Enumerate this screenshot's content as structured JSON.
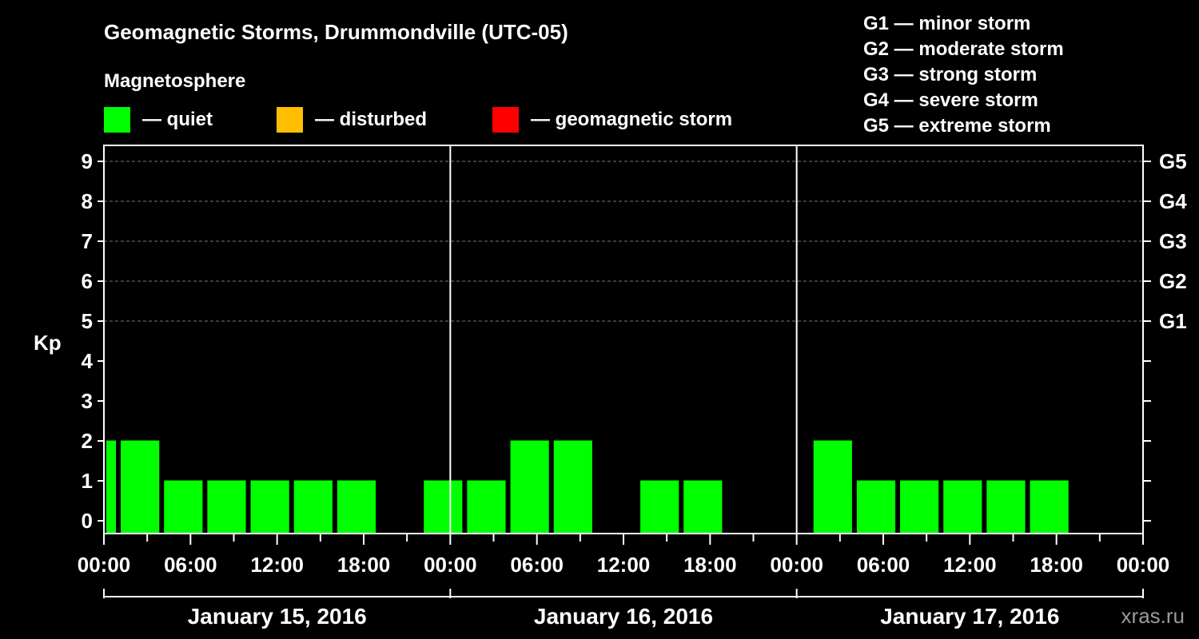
{
  "chart_data": {
    "type": "bar",
    "title": "Geomagnetic Storms, Drummondville (UTC-05)",
    "magnetosphere_label": "Magnetosphere",
    "status_legend": [
      {
        "label": "— quiet",
        "color": "#00ff00"
      },
      {
        "label": "— disturbed",
        "color": "#ffbf00"
      },
      {
        "label": "— geomagnetic storm",
        "color": "#ff0000"
      }
    ],
    "storm_scale": [
      "G1 — minor storm",
      "G2 — moderate storm",
      "G3 — strong storm",
      "G4 — severe storm",
      "G5 — extreme storm"
    ],
    "ylabel": "Kp",
    "ylim": [
      0,
      9
    ],
    "yticks": [
      "0",
      "1",
      "2",
      "3",
      "4",
      "5",
      "6",
      "7",
      "8",
      "9"
    ],
    "right_ticks": [
      {
        "kp": 5,
        "label": "G1"
      },
      {
        "kp": 6,
        "label": "G2"
      },
      {
        "kp": 7,
        "label": "G3"
      },
      {
        "kp": 8,
        "label": "G4"
      },
      {
        "kp": 9,
        "label": "G5"
      }
    ],
    "xlim_hours": [
      0,
      72
    ],
    "xtick_labels": [
      {
        "hour": 0,
        "label": "00:00"
      },
      {
        "hour": 6,
        "label": "06:00"
      },
      {
        "hour": 12,
        "label": "12:00"
      },
      {
        "hour": 18,
        "label": "18:00"
      },
      {
        "hour": 24,
        "label": "00:00"
      },
      {
        "hour": 30,
        "label": "06:00"
      },
      {
        "hour": 36,
        "label": "12:00"
      },
      {
        "hour": 42,
        "label": "18:00"
      },
      {
        "hour": 48,
        "label": "00:00"
      },
      {
        "hour": 54,
        "label": "06:00"
      },
      {
        "hour": 60,
        "label": "12:00"
      },
      {
        "hour": 66,
        "label": "18:00"
      },
      {
        "hour": 72,
        "label": "00:00"
      }
    ],
    "days": [
      "January 15, 2016",
      "January 16, 2016",
      "January 17, 2016"
    ],
    "bars": [
      {
        "start": 0,
        "end": 1,
        "kp": 2,
        "color": "#00ff00"
      },
      {
        "start": 1,
        "end": 4,
        "kp": 2,
        "color": "#00ff00"
      },
      {
        "start": 4,
        "end": 7,
        "kp": 1,
        "color": "#00ff00"
      },
      {
        "start": 7,
        "end": 10,
        "kp": 1,
        "color": "#00ff00"
      },
      {
        "start": 10,
        "end": 13,
        "kp": 1,
        "color": "#00ff00"
      },
      {
        "start": 13,
        "end": 16,
        "kp": 1,
        "color": "#00ff00"
      },
      {
        "start": 16,
        "end": 19,
        "kp": 1,
        "color": "#00ff00"
      },
      {
        "start": 22,
        "end": 25,
        "kp": 1,
        "color": "#00ff00"
      },
      {
        "start": 25,
        "end": 28,
        "kp": 1,
        "color": "#00ff00"
      },
      {
        "start": 28,
        "end": 31,
        "kp": 2,
        "color": "#00ff00"
      },
      {
        "start": 31,
        "end": 34,
        "kp": 2,
        "color": "#00ff00"
      },
      {
        "start": 37,
        "end": 40,
        "kp": 1,
        "color": "#00ff00"
      },
      {
        "start": 40,
        "end": 43,
        "kp": 1,
        "color": "#00ff00"
      },
      {
        "start": 49,
        "end": 52,
        "kp": 2,
        "color": "#00ff00"
      },
      {
        "start": 52,
        "end": 55,
        "kp": 1,
        "color": "#00ff00"
      },
      {
        "start": 55,
        "end": 58,
        "kp": 1,
        "color": "#00ff00"
      },
      {
        "start": 58,
        "end": 61,
        "kp": 1,
        "color": "#00ff00"
      },
      {
        "start": 61,
        "end": 64,
        "kp": 1,
        "color": "#00ff00"
      },
      {
        "start": 64,
        "end": 67,
        "kp": 1,
        "color": "#00ff00"
      }
    ],
    "watermark": "xras.ru"
  }
}
